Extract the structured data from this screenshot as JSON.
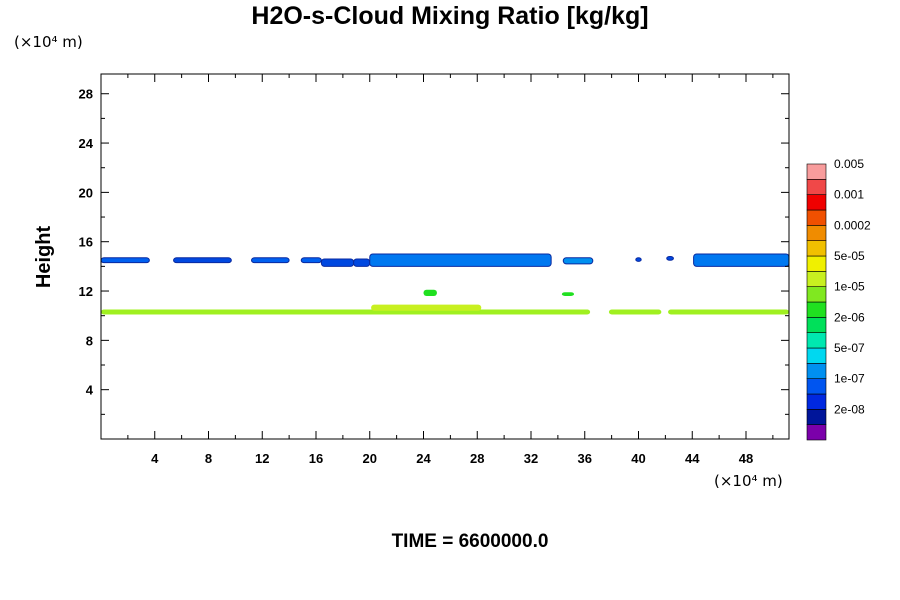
{
  "chart_data": {
    "type": "heatmap",
    "title": "H2O-s-Cloud Mixing Ratio [kg/kg]",
    "ylabel": "Height",
    "x_unit": "(×10⁴ m)",
    "y_unit": "(×10⁴ m)",
    "footer": "TIME = 6600000.0",
    "xlim": [
      0,
      51.2
    ],
    "ylim": [
      0,
      29.6
    ],
    "x_ticks": [
      4,
      8,
      12,
      16,
      20,
      24,
      28,
      32,
      36,
      40,
      44,
      48
    ],
    "y_ticks": [
      4,
      8,
      12,
      16,
      20,
      24,
      28
    ],
    "x_tick_labels": [
      "4",
      "8",
      "12",
      "16",
      "20",
      "24",
      "28",
      "32",
      "36",
      "40",
      "44",
      "48"
    ],
    "y_tick_labels": [
      "4",
      "8",
      "12",
      "16",
      "20",
      "24",
      "28"
    ],
    "colorbar": {
      "colors": [
        "#7b00aa",
        "#00159a",
        "#0028e0",
        "#0055f0",
        "#0090f0",
        "#00d8f0",
        "#00e8b0",
        "#00e05a",
        "#20e020",
        "#80e820",
        "#c8f020",
        "#f0f000",
        "#f0c000",
        "#f08c00",
        "#f05000",
        "#f00000",
        "#f04848",
        "#f89c9c"
      ],
      "labels": [
        "2e-08",
        "1e-07",
        "5e-07",
        "2e-06",
        "1e-05",
        "5e-05",
        "0.0002",
        "0.001",
        "0.005"
      ]
    },
    "features": [
      {
        "band": "upper",
        "x": [
          0,
          3.6
        ],
        "y": [
          14.3,
          14.7
        ],
        "color": "#0060f0"
      },
      {
        "band": "upper",
        "x": [
          5.4,
          9.7
        ],
        "y": [
          14.3,
          14.7
        ],
        "color": "#0048e0"
      },
      {
        "band": "upper",
        "x": [
          11.2,
          14.0
        ],
        "y": [
          14.3,
          14.7
        ],
        "color": "#0060f0"
      },
      {
        "band": "upper",
        "x": [
          14.9,
          16.4
        ],
        "y": [
          14.3,
          14.7
        ],
        "color": "#0060f0"
      },
      {
        "band": "upper",
        "x": [
          16.4,
          18.8
        ],
        "y": [
          14.0,
          14.6
        ],
        "color": "#0048e0"
      },
      {
        "band": "upper",
        "x": [
          18.8,
          20.0
        ],
        "y": [
          14.0,
          14.6
        ],
        "color": "#0048e0"
      },
      {
        "band": "upper",
        "x": [
          20.0,
          33.5
        ],
        "y": [
          14.0,
          15.0
        ],
        "color": "#0078f0"
      },
      {
        "band": "upper",
        "x": [
          34.4,
          36.6
        ],
        "y": [
          14.2,
          14.7
        ],
        "color": "#0090f0"
      },
      {
        "band": "upper",
        "x": [
          39.8,
          40.2
        ],
        "y": [
          14.4,
          14.7
        ],
        "color": "#0048e0"
      },
      {
        "band": "upper",
        "x": [
          42.1,
          42.6
        ],
        "y": [
          14.5,
          14.8
        ],
        "color": "#0048e0"
      },
      {
        "band": "upper",
        "x": [
          44.1,
          51.2
        ],
        "y": [
          14.0,
          15.0
        ],
        "color": "#0078f0"
      },
      {
        "band": "lower",
        "x": [
          0,
          36.4
        ],
        "y": [
          10.1,
          10.5
        ],
        "color": "#a0f020"
      },
      {
        "band": "lower",
        "x": [
          37.8,
          41.7
        ],
        "y": [
          10.1,
          10.5
        ],
        "color": "#a0f020"
      },
      {
        "band": "lower",
        "x": [
          42.2,
          51.2
        ],
        "y": [
          10.1,
          10.5
        ],
        "color": "#a0f020"
      },
      {
        "band": "lower",
        "x": [
          20.1,
          28.3
        ],
        "y": [
          10.4,
          10.9
        ],
        "color": "#c8f020"
      },
      {
        "band": "mid",
        "x": [
          24.0,
          25.0
        ],
        "y": [
          11.6,
          12.1
        ],
        "color": "#20e020"
      },
      {
        "band": "mid",
        "x": [
          34.3,
          35.2
        ],
        "y": [
          11.6,
          11.9
        ],
        "color": "#20e020"
      }
    ]
  }
}
